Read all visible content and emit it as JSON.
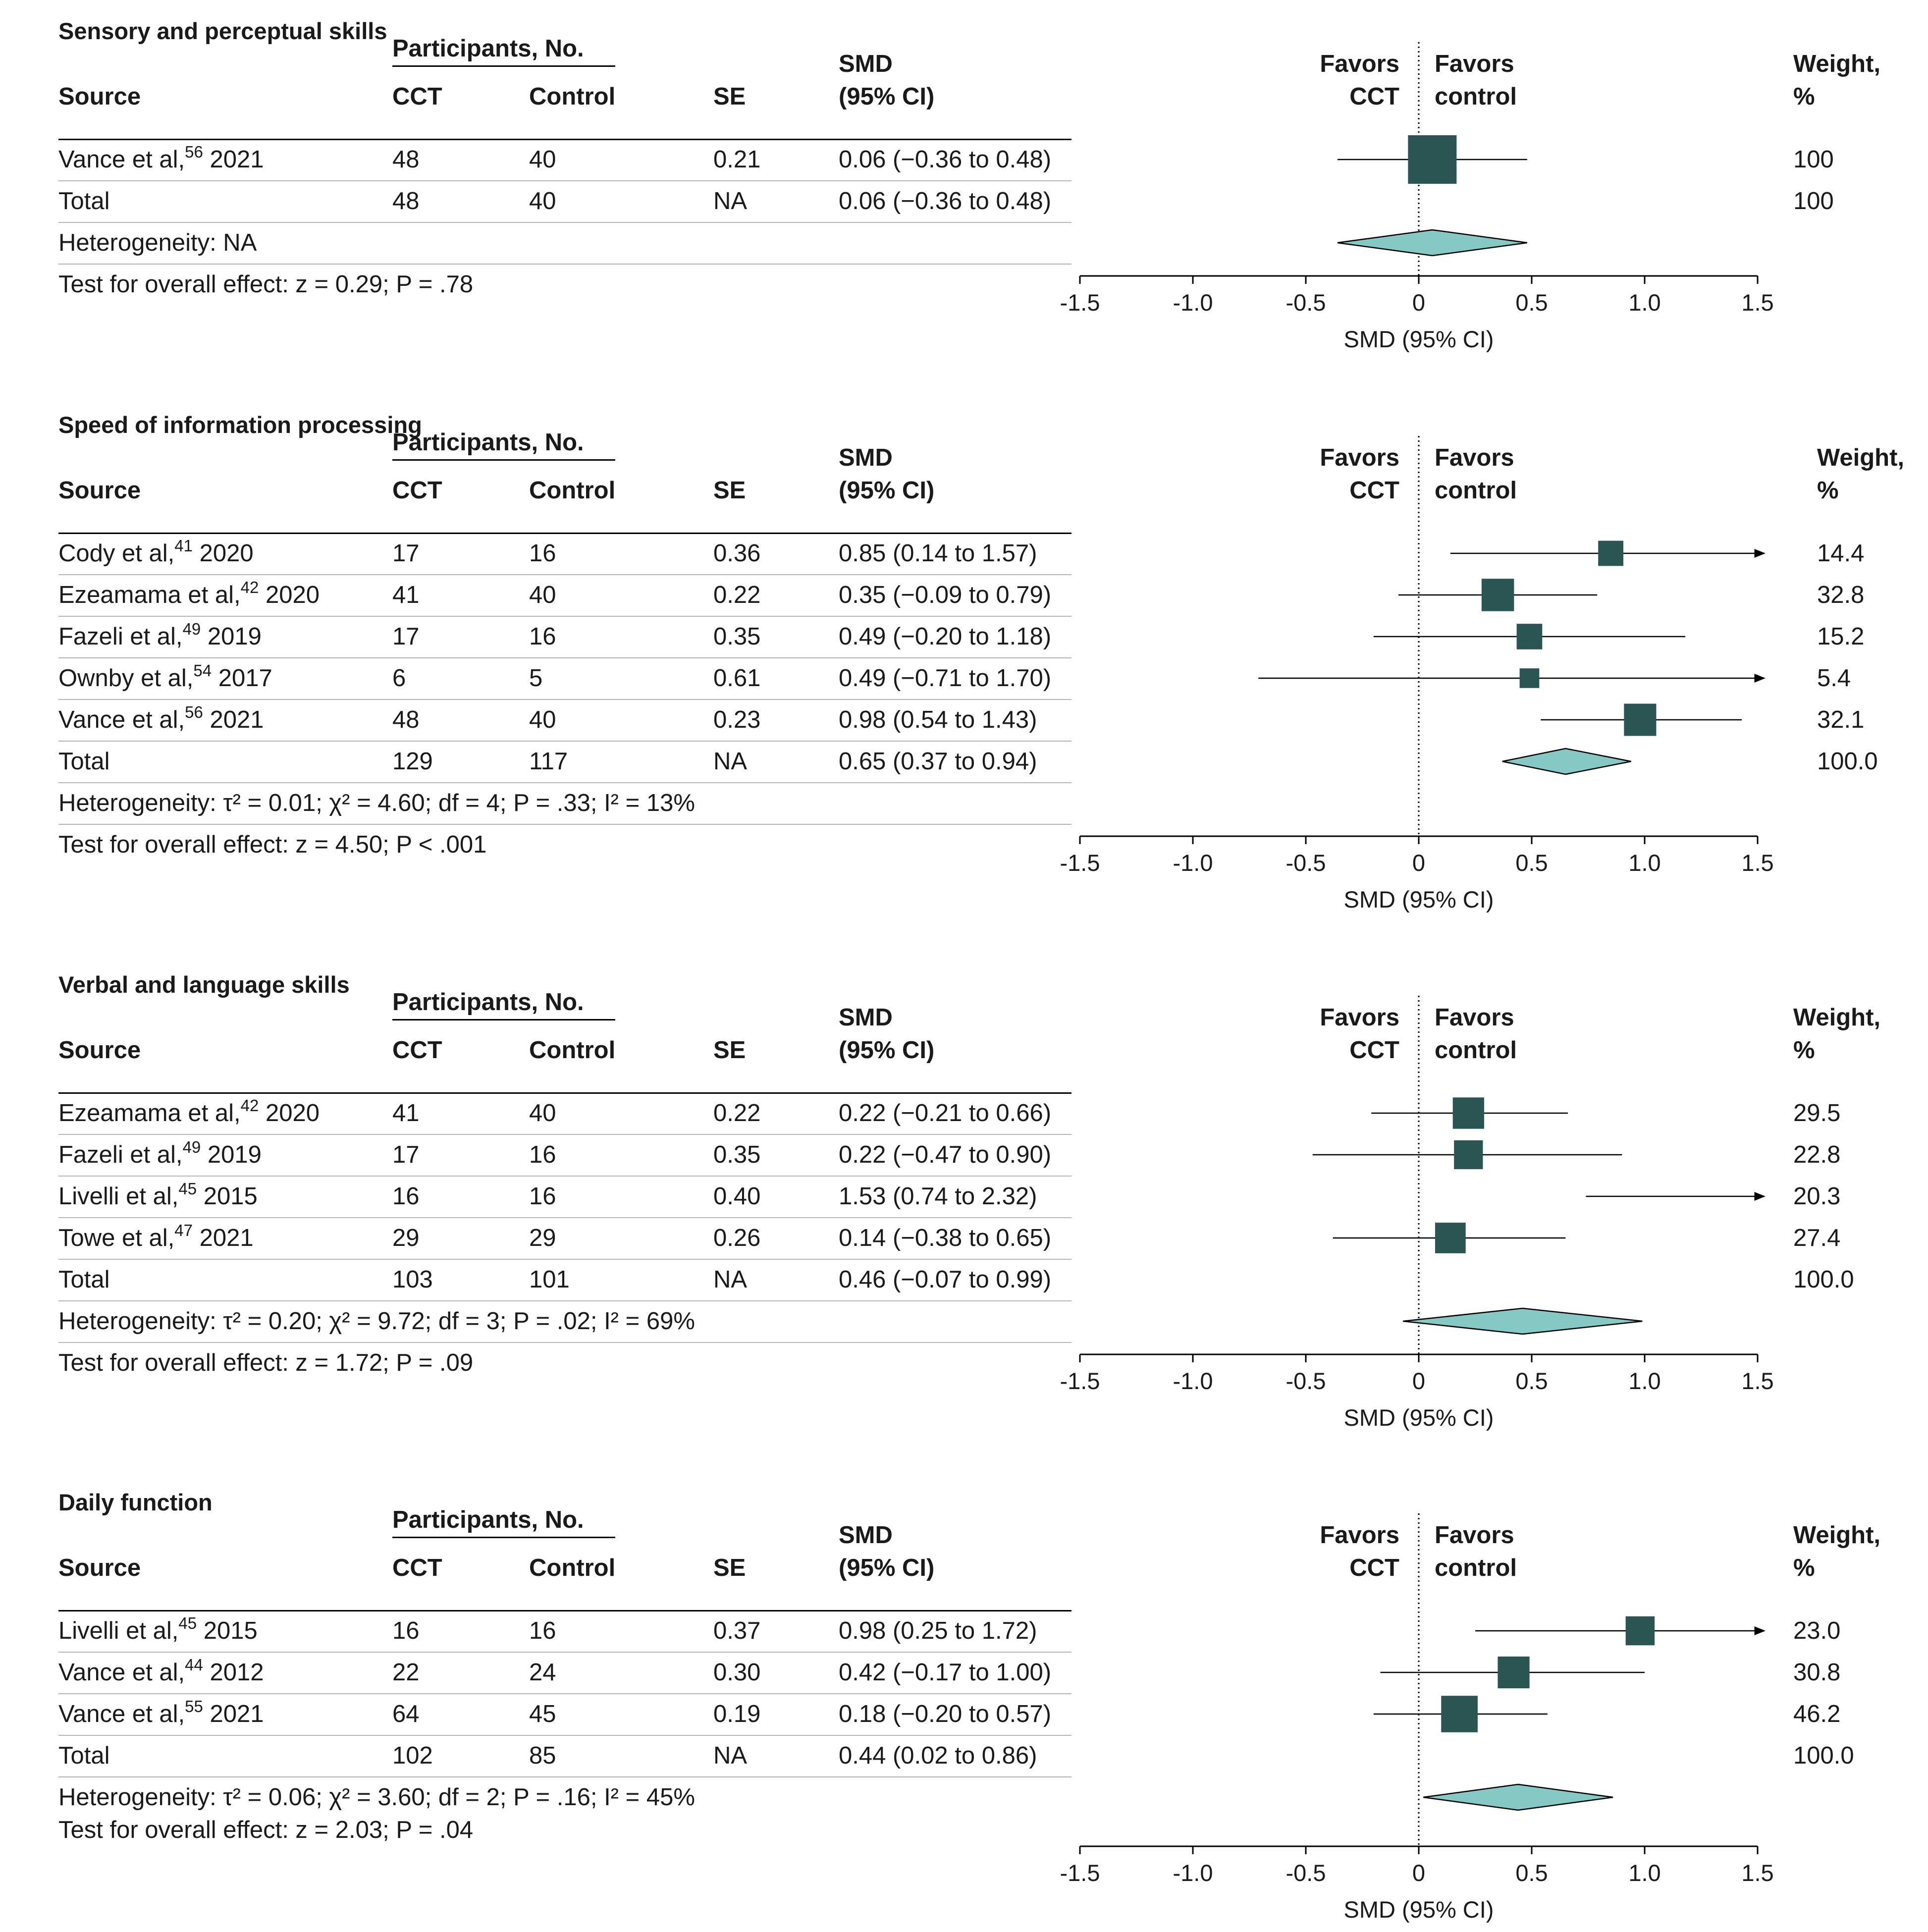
{
  "colors": {
    "square": "#2a5553",
    "diamond": "#86c8c4",
    "line": "#000000"
  },
  "headers": {
    "source": "Source",
    "participants": "Participants, No.",
    "cct": "CCT",
    "control": "Control",
    "se": "SE",
    "smd1": "SMD",
    "smd2": "(95% CI)",
    "favors_cct_1": "Favors",
    "favors_cct_2": "CCT",
    "favors_control_1": "Favors",
    "favors_control_2": "control",
    "weight1": "Weight,",
    "weight2": "%"
  },
  "axis": {
    "ticks": [
      "-1.5",
      "-1.0",
      "-0.5",
      "0",
      "0.5",
      "1.0",
      "1.5"
    ],
    "label": "SMD (95% CI)"
  },
  "panels": [
    {
      "title": "Sensory and perceptual skills",
      "studies": [
        {
          "source": "Vance et al,",
          "ref": "56",
          "year": "2021",
          "cct": "48",
          "control": "40",
          "se": "0.21",
          "ci": "0.06 (−0.36 to 0.48)",
          "weight": "100"
        }
      ],
      "total": {
        "label": "Total",
        "cct": "48",
        "control": "40",
        "se": "NA",
        "ci": "0.06 (−0.36 to 0.48)",
        "weight": "100"
      },
      "heterogeneity": "Heterogeneity: NA",
      "overall": "Test for overall effect: z = 0.29; P = .78"
    },
    {
      "title": "Speed of information processing",
      "studies": [
        {
          "source": "Cody et al,",
          "ref": "41",
          "year": "2020",
          "cct": "17",
          "control": "16",
          "se": "0.36",
          "ci": "0.85 (0.14 to 1.57)",
          "weight": "14.4"
        },
        {
          "source": "Ezeamama et al,",
          "ref": "42",
          "year": "2020",
          "cct": "41",
          "control": "40",
          "se": "0.22",
          "ci": "0.35 (−0.09 to 0.79)",
          "weight": "32.8"
        },
        {
          "source": "Fazeli et al,",
          "ref": "49",
          "year": "2019",
          "cct": "17",
          "control": "16",
          "se": "0.35",
          "ci": "0.49 (−0.20 to 1.18)",
          "weight": "15.2"
        },
        {
          "source": "Ownby et al,",
          "ref": "54",
          "year": "2017",
          "cct": "6",
          "control": "5",
          "se": "0.61",
          "ci": "0.49 (−0.71 to 1.70)",
          "weight": "5.4"
        },
        {
          "source": "Vance et al,",
          "ref": "56",
          "year": "2021",
          "cct": "48",
          "control": "40",
          "se": "0.23",
          "ci": "0.98 (0.54 to 1.43)",
          "weight": "32.1"
        }
      ],
      "total": {
        "label": "Total",
        "cct": "129",
        "control": "117",
        "se": "NA",
        "ci": "0.65 (0.37 to 0.94)",
        "weight": "100.0"
      },
      "heterogeneity": "Heterogeneity: τ² = 0.01; χ² = 4.60; df = 4; P = .33; I² = 13%",
      "overall": "Test for overall effect: z = 4.50; P < .001"
    },
    {
      "title": "Verbal and language skills",
      "studies": [
        {
          "source": "Ezeamama et al,",
          "ref": "42",
          "year": "2020",
          "cct": "41",
          "control": "40",
          "se": "0.22",
          "ci": "0.22 (−0.21 to 0.66)",
          "weight": "29.5"
        },
        {
          "source": "Fazeli et al,",
          "ref": "49",
          "year": "2019",
          "cct": "17",
          "control": "16",
          "se": "0.35",
          "ci": "0.22 (−0.47 to 0.90)",
          "weight": "22.8"
        },
        {
          "source": "Livelli et al,",
          "ref": "45",
          "year": "2015",
          "cct": "16",
          "control": "16",
          "se": "0.40",
          "ci": "1.53 (0.74 to 2.32)",
          "weight": "20.3"
        },
        {
          "source": "Towe et al,",
          "ref": "47",
          "year": "2021",
          "cct": "29",
          "control": "29",
          "se": "0.26",
          "ci": "0.14 (−0.38 to 0.65)",
          "weight": "27.4"
        }
      ],
      "total": {
        "label": "Total",
        "cct": "103",
        "control": "101",
        "se": "NA",
        "ci": "0.46 (−0.07 to 0.99)",
        "weight": "100.0"
      },
      "heterogeneity": "Heterogeneity: τ² = 0.20; χ² = 9.72; df = 3; P = .02; I² = 69%",
      "overall": "Test for overall effect: z = 1.72; P = .09"
    },
    {
      "title": "Daily function",
      "studies": [
        {
          "source": "Livelli et al,",
          "ref": "45",
          "year": "2015",
          "cct": "16",
          "control": "16",
          "se": "0.37",
          "ci": "0.98 (0.25 to 1.72)",
          "weight": "23.0"
        },
        {
          "source": "Vance et al,",
          "ref": "44",
          "year": "2012",
          "cct": "22",
          "control": "24",
          "se": "0.30",
          "ci": "0.42 (−0.17 to 1.00)",
          "weight": "30.8"
        },
        {
          "source": "Vance et al,",
          "ref": "55",
          "year": "2021",
          "cct": "64",
          "control": "45",
          "se": "0.19",
          "ci": "0.18 (−0.20 to 0.57)",
          "weight": "46.2"
        }
      ],
      "total": {
        "label": "Total",
        "cct": "102",
        "control": "85",
        "se": "NA",
        "ci": "0.44 (0.02 to 0.86)",
        "weight": "100.0"
      },
      "heterogeneity": "Heterogeneity: τ² = 0.06; χ² = 3.60; df = 2; P = .16; I² = 45%",
      "overall": "Test for overall effect: z = 2.03; P = .04"
    }
  ],
  "chart_data": {
    "type": "forest",
    "xlabel": "SMD (95% CI)",
    "xlim": [
      -1.5,
      1.5
    ],
    "ticks": [
      -1.5,
      -1.0,
      -0.5,
      0,
      0.5,
      1.0,
      1.5
    ],
    "panels": [
      {
        "title": "Sensory and perceptual skills",
        "studies": [
          {
            "label": "Vance et al, 2021",
            "smd": 0.06,
            "lo": -0.36,
            "hi": 0.48,
            "weight": 100
          }
        ],
        "total": {
          "smd": 0.06,
          "lo": -0.36,
          "hi": 0.48,
          "weight": 100
        }
      },
      {
        "title": "Speed of information processing",
        "studies": [
          {
            "label": "Cody et al, 2020",
            "smd": 0.85,
            "lo": 0.14,
            "hi": 1.57,
            "weight": 14.4
          },
          {
            "label": "Ezeamama et al, 2020",
            "smd": 0.35,
            "lo": -0.09,
            "hi": 0.79,
            "weight": 32.8
          },
          {
            "label": "Fazeli et al, 2019",
            "smd": 0.49,
            "lo": -0.2,
            "hi": 1.18,
            "weight": 15.2
          },
          {
            "label": "Ownby et al, 2017",
            "smd": 0.49,
            "lo": -0.71,
            "hi": 1.7,
            "weight": 5.4
          },
          {
            "label": "Vance et al, 2021",
            "smd": 0.98,
            "lo": 0.54,
            "hi": 1.43,
            "weight": 32.1
          }
        ],
        "total": {
          "smd": 0.65,
          "lo": 0.37,
          "hi": 0.94,
          "weight": 100.0
        }
      },
      {
        "title": "Verbal and language skills",
        "studies": [
          {
            "label": "Ezeamama et al, 2020",
            "smd": 0.22,
            "lo": -0.21,
            "hi": 0.66,
            "weight": 29.5
          },
          {
            "label": "Fazeli et al, 2019",
            "smd": 0.22,
            "lo": -0.47,
            "hi": 0.9,
            "weight": 22.8
          },
          {
            "label": "Livelli et al, 2015",
            "smd": 1.53,
            "lo": 0.74,
            "hi": 2.32,
            "weight": 20.3
          },
          {
            "label": "Towe et al, 2021",
            "smd": 0.14,
            "lo": -0.38,
            "hi": 0.65,
            "weight": 27.4
          }
        ],
        "total": {
          "smd": 0.46,
          "lo": -0.07,
          "hi": 0.99,
          "weight": 100.0
        }
      },
      {
        "title": "Daily function",
        "studies": [
          {
            "label": "Livelli et al, 2015",
            "smd": 0.98,
            "lo": 0.25,
            "hi": 1.72,
            "weight": 23.0
          },
          {
            "label": "Vance et al, 2012",
            "smd": 0.42,
            "lo": -0.17,
            "hi": 1.0,
            "weight": 30.8
          },
          {
            "label": "Vance et al, 2021",
            "smd": 0.18,
            "lo": -0.2,
            "hi": 0.57,
            "weight": 46.2
          }
        ],
        "total": {
          "smd": 0.44,
          "lo": 0.02,
          "hi": 0.86,
          "weight": 100.0
        }
      }
    ]
  }
}
